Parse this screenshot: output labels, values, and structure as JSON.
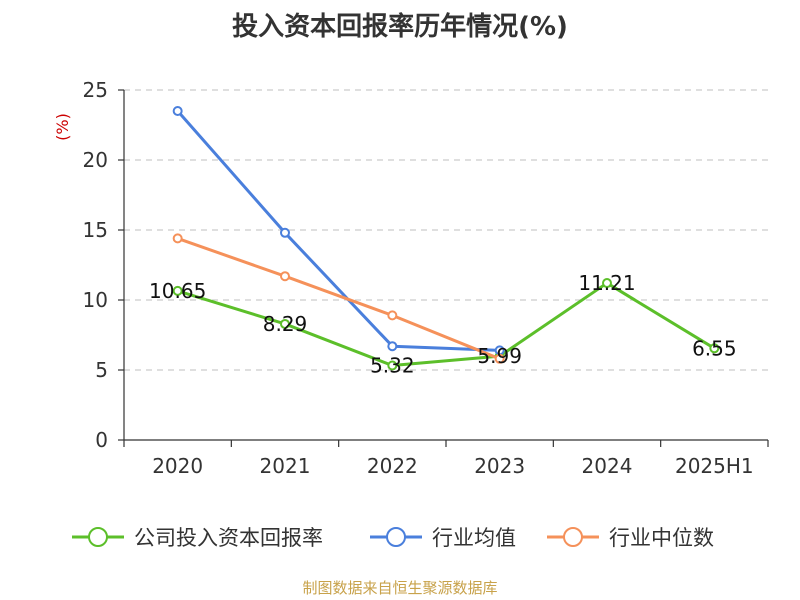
{
  "chart_data": {
    "type": "line",
    "title": "投入资本回报率历年情况(%)",
    "ylabel": "(%)",
    "xlabel": "",
    "categories": [
      "2020",
      "2021",
      "2022",
      "2023",
      "2024",
      "2025H1"
    ],
    "ylim": [
      0,
      25
    ],
    "yticks": [
      0,
      5,
      10,
      15,
      20,
      25
    ],
    "grid": "horizontal-dashed",
    "legend_position": "bottom",
    "series": [
      {
        "name": "公司投入资本回报率",
        "color": "#5cbf2a",
        "values": [
          10.65,
          8.29,
          5.32,
          5.99,
          11.21,
          6.55
        ],
        "labels": [
          "10.65",
          "8.29",
          "5.32",
          "5.99",
          "11.21",
          "6.55"
        ]
      },
      {
        "name": "行业均值",
        "color": "#4a7fdc",
        "values": [
          23.5,
          14.8,
          6.7,
          6.4,
          null,
          null
        ]
      },
      {
        "name": "行业中位数",
        "color": "#f5915a",
        "values": [
          14.4,
          11.7,
          8.9,
          5.8,
          null,
          null
        ]
      }
    ]
  },
  "source": "制图数据来自恒生聚源数据库"
}
